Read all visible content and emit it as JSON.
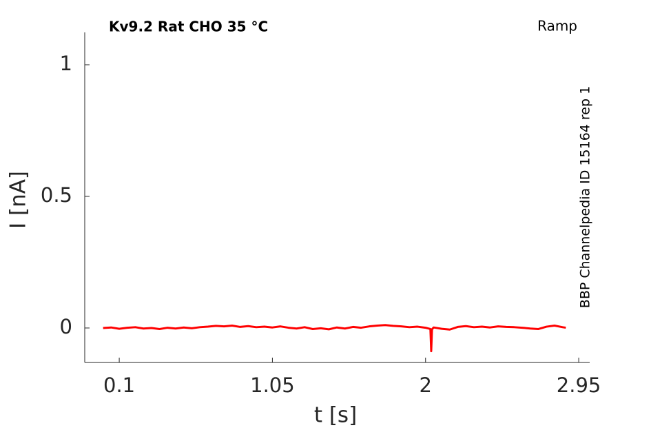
{
  "chart_data": {
    "type": "line",
    "title": "Kv9.2  Rat  CHO  35 °C",
    "annotations": [
      "Ramp",
      "BBP Channelpedia ID 15164 rep 1"
    ],
    "xlabel": "t [s]",
    "ylabel": "I [nA]",
    "x": [
      0,
      0.05,
      0.1,
      0.15,
      0.2,
      0.25,
      0.3,
      0.35,
      0.4,
      0.45,
      0.5,
      0.55,
      0.6,
      0.65,
      0.7,
      0.75,
      0.8,
      0.85,
      0.9,
      0.95,
      1,
      1.05,
      1.1,
      1.15,
      1.2,
      1.25,
      1.3,
      1.35,
      1.4,
      1.45,
      1.5,
      1.55,
      1.6,
      1.65,
      1.7,
      1.75,
      1.8,
      1.85,
      1.9,
      1.95,
      2,
      2.03,
      2.035,
      2.04,
      2.05,
      2.1,
      2.15,
      2.2,
      2.25,
      2.3,
      2.35,
      2.4,
      2.45,
      2.5,
      2.55,
      2.6,
      2.65,
      2.7,
      2.75,
      2.8,
      2.85,
      2.87
    ],
    "series": [
      {
        "color": "#ff0000",
        "values": [
          0,
          0.002,
          -0.003,
          0.001,
          0.003,
          -0.002,
          0,
          -0.004,
          0.001,
          -0.002,
          0.002,
          -0.001,
          0.003,
          0.005,
          0.008,
          0.006,
          0.009,
          0.004,
          0.007,
          0.003,
          0.005,
          0.002,
          0.006,
          0.001,
          -0.002,
          0.003,
          -0.004,
          -0.001,
          -0.005,
          0.002,
          -0.002,
          0.004,
          0.001,
          0.006,
          0.009,
          0.011,
          0.008,
          0.006,
          0.003,
          0.005,
          0.001,
          -0.004,
          -0.088,
          -0.005,
          0.002,
          -0.003,
          -0.006,
          0.004,
          0.007,
          0.003,
          0.005,
          0.002,
          0.006,
          0.004,
          0.003,
          0.001,
          -0.002,
          -0.004,
          0.005,
          0.009,
          0.003,
          0.001
        ]
      }
    ],
    "xlim": [
      -0.114,
      3.018
    ],
    "xticks": [
      0.1,
      1.05,
      2,
      2.95
    ],
    "ylim": [
      -0.131,
      1.123
    ],
    "yticks": [
      0,
      0.5,
      1
    ]
  }
}
